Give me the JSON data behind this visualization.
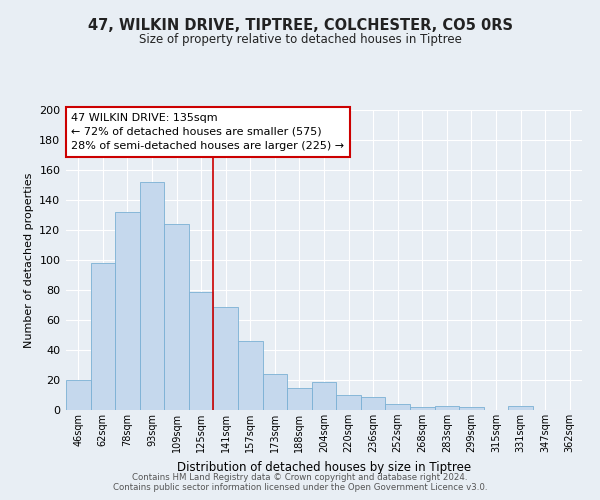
{
  "title": "47, WILKIN DRIVE, TIPTREE, COLCHESTER, CO5 0RS",
  "subtitle": "Size of property relative to detached houses in Tiptree",
  "xlabel": "Distribution of detached houses by size in Tiptree",
  "ylabel": "Number of detached properties",
  "bar_labels": [
    "46sqm",
    "62sqm",
    "78sqm",
    "93sqm",
    "109sqm",
    "125sqm",
    "141sqm",
    "157sqm",
    "173sqm",
    "188sqm",
    "204sqm",
    "220sqm",
    "236sqm",
    "252sqm",
    "268sqm",
    "283sqm",
    "299sqm",
    "315sqm",
    "331sqm",
    "347sqm",
    "362sqm"
  ],
  "bar_values": [
    20,
    98,
    132,
    152,
    124,
    79,
    69,
    46,
    24,
    15,
    19,
    10,
    9,
    4,
    2,
    3,
    2,
    0,
    3,
    0,
    0
  ],
  "bar_color": "#c5d8ed",
  "bar_edge_color": "#7ab0d4",
  "property_line_x": 6,
  "property_line_color": "#cc0000",
  "annotation_text": "47 WILKIN DRIVE: 135sqm\n← 72% of detached houses are smaller (575)\n28% of semi-detached houses are larger (225) →",
  "annotation_box_color": "#ffffff",
  "annotation_box_edge": "#cc0000",
  "ylim": [
    0,
    200
  ],
  "yticks": [
    0,
    20,
    40,
    60,
    80,
    100,
    120,
    140,
    160,
    180,
    200
  ],
  "footer_line1": "Contains HM Land Registry data © Crown copyright and database right 2024.",
  "footer_line2": "Contains public sector information licensed under the Open Government Licence v3.0.",
  "bg_color": "#e8eef4",
  "grid_color": "#ffffff",
  "text_color": "#222222"
}
